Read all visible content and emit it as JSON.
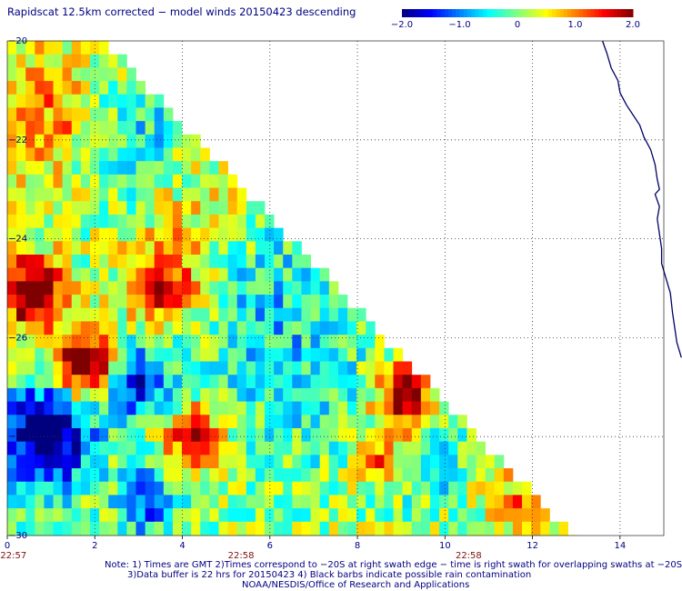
{
  "title": "Rapidscat 12.5km corrected − model winds 20150423 descending",
  "colorbar": {
    "tick_labels": [
      "−2.0",
      "−1.0",
      "0",
      "1.0",
      "2.0"
    ],
    "range": [
      -2.0,
      2.0
    ],
    "colors": [
      "#00007f",
      "#0000ff",
      "#0080ff",
      "#00ffff",
      "#80ff80",
      "#ffff00",
      "#ff8000",
      "#ff0000",
      "#7f0000"
    ]
  },
  "notes": [
    "Note: 1) Times are GMT 2)Times correspond to −20S at right swath edge − time is right swath for overlapping swaths at −20S",
    "3)Data buffer is 22 hrs for 20150423 4) Black barbs indicate possible rain contamination",
    "NOAA/NESDIS/Office of Research and Applications"
  ],
  "time_labels": [
    "22:57",
    "22:58",
    "22:58"
  ],
  "coastline_color": "#000066",
  "chart_data": {
    "type": "heatmap",
    "title": "Rapidscat 12.5km corrected − model winds 20150423 descending",
    "x_ticks": [
      "0",
      "2",
      "4",
      "6",
      "8",
      "10",
      "12",
      "14"
    ],
    "y_ticks": [
      "−20",
      "−22",
      "−24",
      "−26",
      "−28",
      "−30"
    ],
    "xlim": [
      0,
      15
    ],
    "ylim": [
      -30,
      -20
    ],
    "value_range": [
      -2.0,
      2.0
    ],
    "grid": "dotted",
    "swath_edge": {
      "x_at_top": 2.1,
      "x_at_bottom": 12.8
    },
    "features": [
      {
        "region": "left edge x 0-2, y -24 to -26",
        "value": 2.0,
        "description": "dark red high differences"
      },
      {
        "region": "x 1.5-2.3, y -26 to -27",
        "value": 2.0,
        "description": "dark red cluster"
      },
      {
        "region": "x 0.5-1.5, y -27 to -29",
        "value": -2.0,
        "description": "blue negative differences"
      },
      {
        "region": "x 8.5-9.5, y -26.5 to -28",
        "value": 1.8,
        "description": "red band near swath edge"
      },
      {
        "region": "x 5-8, y -24 to -30",
        "value": 0.0,
        "description": "mostly cyan / green neutral"
      }
    ]
  }
}
